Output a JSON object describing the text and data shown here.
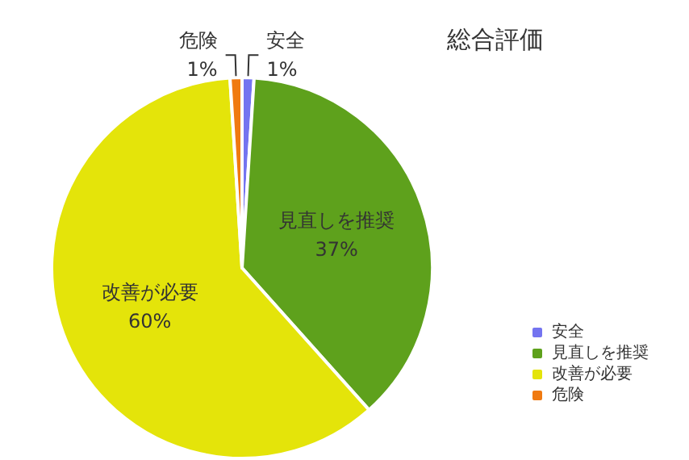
{
  "chart_data": {
    "type": "pie",
    "title": "総合評価",
    "categories": [
      "安全",
      "見直しを推奨",
      "改善が必要",
      "危険"
    ],
    "values": [
      1,
      37,
      60,
      1
    ],
    "value_labels": [
      "1%",
      "37%",
      "60%",
      "1%"
    ],
    "colors": [
      "#7474f0",
      "#5ea11c",
      "#e4e40a",
      "#f07a10"
    ],
    "legend": "bottom right"
  }
}
